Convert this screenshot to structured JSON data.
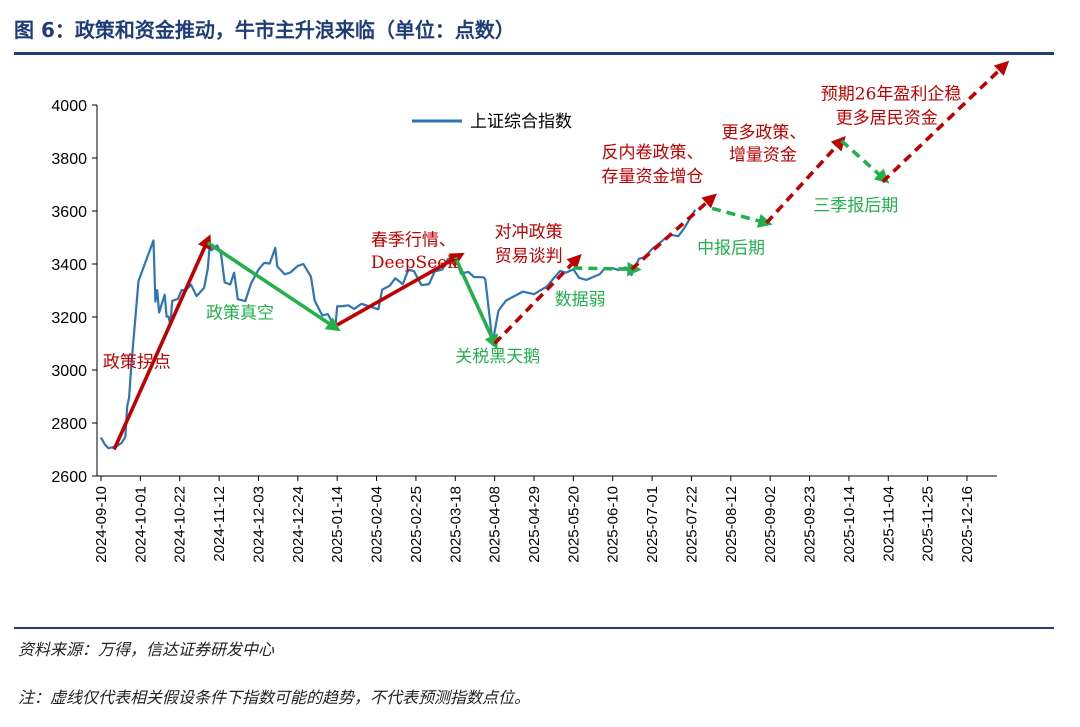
{
  "header": {
    "title": "图 6：政策和资金推动，牛市主升浪来临（单位：点数）"
  },
  "footer": {
    "source": "资料来源：万得，信达证券研发中心",
    "note": "注：虚线仅代表相关假设条件下指数可能的趋势，不代表预测指数点位。"
  },
  "colors": {
    "index_line": "#2e75b6",
    "up": "#c00000",
    "down": "#22b04b",
    "header": "#1f3c78"
  },
  "chart_data": {
    "type": "line",
    "title": "",
    "xlabel": "",
    "ylabel": "",
    "ylim": [
      2600,
      4000
    ],
    "yticks": [
      2600,
      2800,
      3000,
      3200,
      3400,
      3600,
      3800,
      4000
    ],
    "x_tick_labels": [
      "2024-09-10",
      "2024-10-01",
      "2024-10-22",
      "2024-11-12",
      "2024-12-03",
      "2024-12-24",
      "2025-01-14",
      "2025-02-04",
      "2025-02-25",
      "2025-03-18",
      "2025-04-08",
      "2025-04-29",
      "2025-05-20",
      "2025-06-10",
      "2025-07-01",
      "2025-07-22",
      "2025-08-12",
      "2025-09-02",
      "2025-09-23",
      "2025-10-14",
      "2025-11-04",
      "2025-11-25",
      "2025-12-16"
    ],
    "legend": {
      "position": "top-center",
      "label": "上证综合指数"
    },
    "series": [
      {
        "name": "上证综合指数",
        "points": [
          [
            "2024-09-10",
            2745
          ],
          [
            "2024-09-12",
            2720
          ],
          [
            "2024-09-14",
            2705
          ],
          [
            "2024-09-17",
            2710
          ],
          [
            "2024-09-19",
            2715
          ],
          [
            "2024-09-21",
            2725
          ],
          [
            "2024-09-23",
            2748
          ],
          [
            "2024-09-24",
            2863
          ],
          [
            "2024-09-25",
            2896
          ],
          [
            "2024-09-26",
            3000
          ],
          [
            "2024-09-27",
            3087
          ],
          [
            "2024-09-30",
            3336
          ],
          [
            "2024-10-08",
            3489
          ],
          [
            "2024-10-09",
            3258
          ],
          [
            "2024-10-10",
            3301
          ],
          [
            "2024-10-11",
            3217
          ],
          [
            "2024-10-14",
            3284
          ],
          [
            "2024-10-15",
            3201
          ],
          [
            "2024-10-16",
            3202
          ],
          [
            "2024-10-17",
            3169
          ],
          [
            "2024-10-18",
            3261
          ],
          [
            "2024-10-21",
            3268
          ],
          [
            "2024-10-23",
            3302
          ],
          [
            "2024-10-25",
            3300
          ],
          [
            "2024-10-28",
            3322
          ],
          [
            "2024-10-31",
            3279
          ],
          [
            "2024-11-04",
            3310
          ],
          [
            "2024-11-06",
            3383
          ],
          [
            "2024-11-07",
            3471
          ],
          [
            "2024-11-08",
            3452
          ],
          [
            "2024-11-11",
            3470
          ],
          [
            "2024-11-13",
            3439
          ],
          [
            "2024-11-15",
            3330
          ],
          [
            "2024-11-18",
            3323
          ],
          [
            "2024-11-20",
            3367
          ],
          [
            "2024-11-22",
            3267
          ],
          [
            "2024-11-26",
            3260
          ],
          [
            "2024-11-29",
            3326
          ],
          [
            "2024-12-03",
            3379
          ],
          [
            "2024-12-06",
            3404
          ],
          [
            "2024-12-09",
            3402
          ],
          [
            "2024-12-10",
            3422
          ],
          [
            "2024-12-12",
            3461
          ],
          [
            "2024-12-13",
            3391
          ],
          [
            "2024-12-17",
            3361
          ],
          [
            "2024-12-20",
            3368
          ],
          [
            "2024-12-24",
            3393
          ],
          [
            "2024-12-27",
            3400
          ],
          [
            "2024-12-31",
            3352
          ],
          [
            "2025-01-02",
            3262
          ],
          [
            "2025-01-06",
            3206
          ],
          [
            "2025-01-09",
            3211
          ],
          [
            "2025-01-13",
            3160
          ],
          [
            "2025-01-14",
            3240
          ],
          [
            "2025-01-17",
            3241
          ],
          [
            "2025-01-20",
            3244
          ],
          [
            "2025-01-23",
            3230
          ],
          [
            "2025-01-27",
            3250
          ],
          [
            "2025-02-05",
            3229
          ],
          [
            "2025-02-07",
            3303
          ],
          [
            "2025-02-11",
            3318
          ],
          [
            "2025-02-14",
            3346
          ],
          [
            "2025-02-18",
            3324
          ],
          [
            "2025-02-21",
            3379
          ],
          [
            "2025-02-24",
            3373
          ],
          [
            "2025-02-28",
            3320
          ],
          [
            "2025-03-04",
            3324
          ],
          [
            "2025-03-07",
            3372
          ],
          [
            "2025-03-11",
            3379
          ],
          [
            "2025-03-14",
            3419
          ],
          [
            "2025-03-18",
            3429
          ],
          [
            "2025-03-21",
            3364
          ],
          [
            "2025-03-25",
            3370
          ],
          [
            "2025-03-28",
            3351
          ],
          [
            "2025-04-02",
            3350
          ],
          [
            "2025-04-03",
            3342
          ],
          [
            "2025-04-07",
            3096
          ],
          [
            "2025-04-08",
            3145
          ],
          [
            "2025-04-10",
            3223
          ],
          [
            "2025-04-14",
            3262
          ],
          [
            "2025-04-18",
            3277
          ],
          [
            "2025-04-23",
            3296
          ],
          [
            "2025-04-29",
            3286
          ],
          [
            "2025-05-06",
            3316
          ],
          [
            "2025-05-09",
            3342
          ],
          [
            "2025-05-13",
            3374
          ],
          [
            "2025-05-16",
            3367
          ],
          [
            "2025-05-20",
            3380
          ],
          [
            "2025-05-23",
            3348
          ],
          [
            "2025-05-27",
            3340
          ],
          [
            "2025-06-03",
            3361
          ],
          [
            "2025-06-06",
            3385
          ],
          [
            "2025-06-10",
            3384
          ],
          [
            "2025-06-13",
            3377
          ],
          [
            "2025-06-17",
            3387
          ],
          [
            "2025-06-20",
            3359
          ],
          [
            "2025-06-24",
            3420
          ],
          [
            "2025-06-27",
            3424
          ],
          [
            "2025-07-01",
            3457
          ],
          [
            "2025-07-04",
            3473
          ],
          [
            "2025-07-08",
            3497
          ],
          [
            "2025-07-11",
            3510
          ],
          [
            "2025-07-15",
            3505
          ],
          [
            "2025-07-18",
            3534
          ],
          [
            "2025-07-22",
            3581
          ],
          [
            "2025-07-24",
            3605
          ]
        ]
      }
    ],
    "annotations": [
      {
        "text": "政策拐点",
        "color": "up",
        "x": "2024-09-11",
        "y": 3010
      },
      {
        "text": "政策真空",
        "color": "down",
        "x": "2024-11-05",
        "y": 3195
      },
      {
        "text": "春季行情、",
        "color": "up",
        "x": "2025-02-01",
        "y": 3470
      },
      {
        "text": "DeepSeek",
        "color": "up",
        "x": "2025-02-01",
        "y": 3385
      },
      {
        "text": "关税黑天鹅",
        "color": "down",
        "x": "2025-03-18",
        "y": 3030
      },
      {
        "text": "对冲政策",
        "color": "up",
        "x": "2025-04-08",
        "y": 3500
      },
      {
        "text": "贸易谈判",
        "color": "up",
        "x": "2025-04-08",
        "y": 3410
      },
      {
        "text": "数据弱",
        "color": "down",
        "x": "2025-05-10",
        "y": 3245
      },
      {
        "text": "反内卷政策、",
        "color": "up",
        "x": "2025-06-04",
        "y": 3800
      },
      {
        "text": "存量资金增仓",
        "color": "up",
        "x": "2025-06-04",
        "y": 3710
      },
      {
        "text": "中报后期",
        "color": "down",
        "x": "2025-07-25",
        "y": 3440
      },
      {
        "text": "更多政策、",
        "color": "up",
        "x": "2025-08-07",
        "y": 3875
      },
      {
        "text": "增量资金",
        "color": "up",
        "x": "2025-08-11",
        "y": 3790
      },
      {
        "text": "三季报后期",
        "color": "down",
        "x": "2025-09-25",
        "y": 3600
      },
      {
        "text": "预期26年盈利企稳",
        "color": "up",
        "x": "2025-09-29",
        "y": 4020
      },
      {
        "text": "更多居民资金",
        "color": "up",
        "x": "2025-10-07",
        "y": 3930
      }
    ],
    "trend_arrows": [
      {
        "from": [
          "2024-09-17",
          2700
        ],
        "to": [
          "2024-11-06",
          3490
        ],
        "color": "up",
        "style": "solid"
      },
      {
        "from": [
          "2024-11-06",
          3480
        ],
        "to": [
          "2025-01-13",
          3160
        ],
        "color": "down",
        "style": "solid"
      },
      {
        "from": [
          "2025-01-14",
          3170
        ],
        "to": [
          "2025-03-20",
          3430
        ],
        "color": "up",
        "style": "solid"
      },
      {
        "from": [
          "2025-03-18",
          3425
        ],
        "to": [
          "2025-04-08",
          3100
        ],
        "color": "down",
        "style": "solid"
      },
      {
        "from": [
          "2025-04-08",
          3100
        ],
        "to": [
          "2025-05-22",
          3420
        ],
        "color": "up",
        "style": "dashed"
      },
      {
        "from": [
          "2025-05-20",
          3385
        ],
        "to": [
          "2025-06-22",
          3380
        ],
        "color": "down",
        "style": "dashed"
      },
      {
        "from": [
          "2025-06-20",
          3380
        ],
        "to": [
          "2025-08-02",
          3650
        ],
        "color": "up",
        "style": "dashed"
      },
      {
        "from": [
          "2025-08-02",
          3610
        ],
        "to": [
          "2025-08-31",
          3555
        ],
        "color": "down",
        "style": "dashed"
      },
      {
        "from": [
          "2025-08-31",
          3555
        ],
        "to": [
          "2025-10-10",
          3865
        ],
        "color": "up",
        "style": "dashed"
      },
      {
        "from": [
          "2025-10-10",
          3865
        ],
        "to": [
          "2025-11-02",
          3720
        ],
        "color": "down",
        "style": "dashed"
      },
      {
        "from": [
          "2025-11-01",
          3710
        ],
        "to": [
          "2026-01-05",
          4150
        ],
        "color": "up",
        "style": "dashed"
      }
    ]
  }
}
